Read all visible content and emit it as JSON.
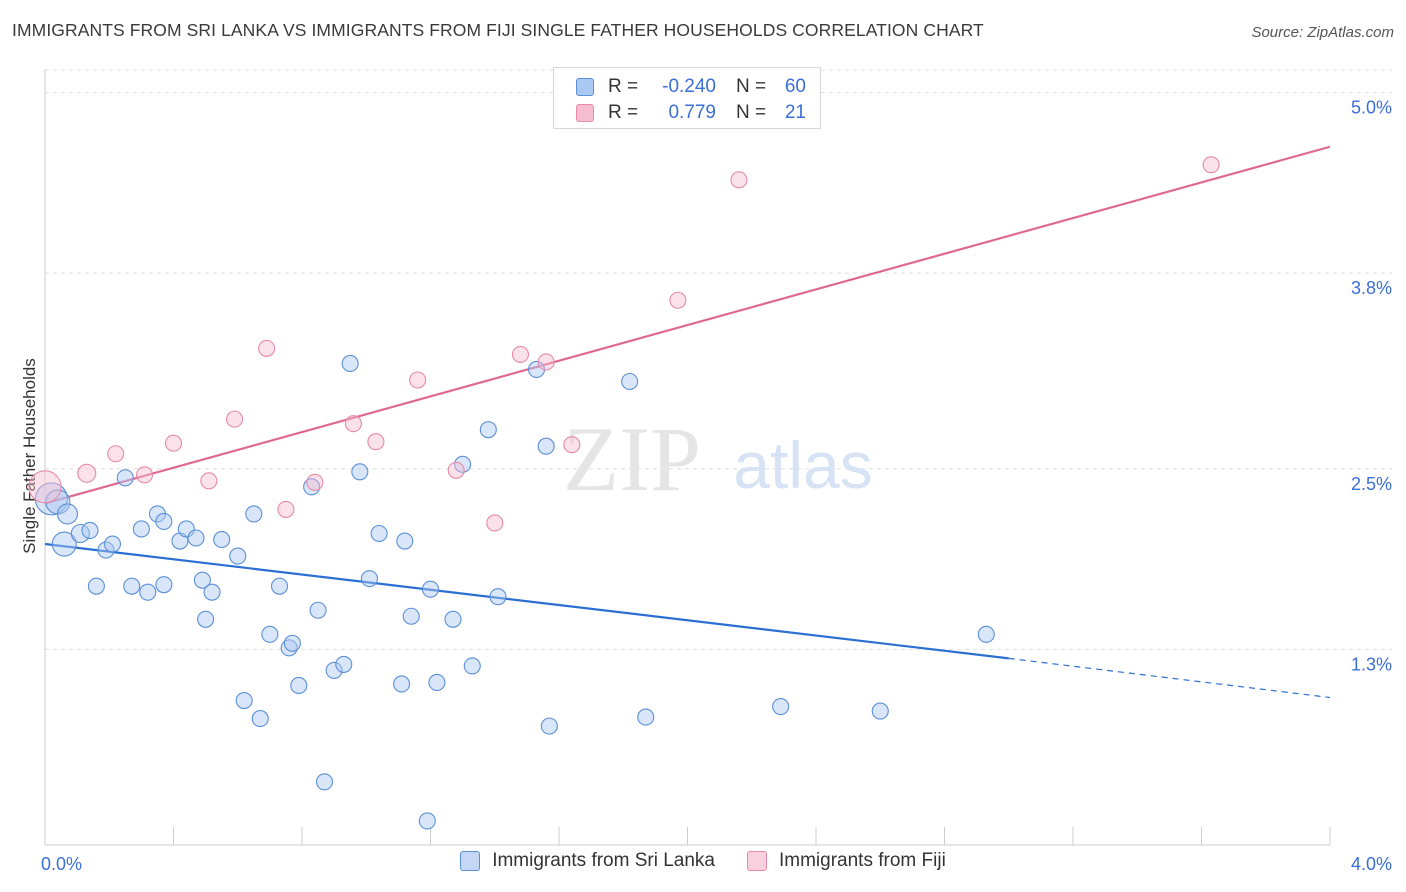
{
  "header": {
    "title": "IMMIGRANTS FROM SRI LANKA VS IMMIGRANTS FROM FIJI SINGLE FATHER HOUSEHOLDS CORRELATION CHART",
    "source": "Source: ZipAtlas.com"
  },
  "watermark": {
    "zip": "ZIP",
    "atlas": "atlas"
  },
  "legend_top": {
    "rows": [
      {
        "r_label": "R =",
        "r_value": "-0.240",
        "n_label": "N =",
        "n_value": "60"
      },
      {
        "r_label": "R =",
        "r_value": "0.779",
        "n_label": "N =",
        "n_value": "21"
      }
    ]
  },
  "legend_bottom": {
    "items": [
      {
        "label": "Immigrants from Sri Lanka"
      },
      {
        "label": "Immigrants from Fiji"
      }
    ]
  },
  "colors": {
    "sri_lanka_fill": "#aac8f2",
    "sri_lanka_stroke": "#5b8fd8",
    "sri_lanka_line": "#2b6fd1",
    "fiji_fill": "#f6bcd0",
    "fiji_stroke": "#e68aaa",
    "fiji_line": "#e06890",
    "tick_label": "#3b6fd6",
    "grid": "#dddddd"
  },
  "chart_data": {
    "type": "scatter",
    "title": "IMMIGRANTS FROM SRI LANKA VS IMMIGRANTS FROM FIJI SINGLE FATHER HOUSEHOLDS CORRELATION CHART",
    "xlabel": "",
    "ylabel": "Single Father Households",
    "xlim": [
      0.0,
      4.0
    ],
    "ylim": [
      0.0,
      5.15
    ],
    "x_tick_labels": [
      "0.0%",
      "4.0%"
    ],
    "y_ticks": [
      {
        "value": 1.3,
        "label": "1.3%"
      },
      {
        "value": 2.5,
        "label": "2.5%"
      },
      {
        "value": 3.8,
        "label": "3.8%"
      },
      {
        "value": 5.0,
        "label": "5.0%"
      }
    ],
    "grid": "horizontal dashed",
    "legend_position": "top-center and bottom",
    "series": [
      {
        "name": "Immigrants from Sri Lanka",
        "R": -0.24,
        "N": 60,
        "trend": {
          "x": [
            0.0,
            3.0
          ],
          "y": [
            2.0,
            1.24
          ],
          "dashed_extension": {
            "x": [
              3.0,
              4.0
            ],
            "y": [
              1.24,
              0.98
            ]
          }
        },
        "points": [
          {
            "x": 0.02,
            "y": 2.3,
            "s": 16
          },
          {
            "x": 0.04,
            "y": 2.28,
            "s": 12
          },
          {
            "x": 0.07,
            "y": 2.2,
            "s": 10
          },
          {
            "x": 0.06,
            "y": 2.0,
            "s": 12
          },
          {
            "x": 0.11,
            "y": 2.07,
            "s": 9
          },
          {
            "x": 0.14,
            "y": 2.09,
            "s": 8
          },
          {
            "x": 0.16,
            "y": 1.72,
            "s": 8
          },
          {
            "x": 0.19,
            "y": 1.96,
            "s": 8
          },
          {
            "x": 0.21,
            "y": 2.0,
            "s": 8
          },
          {
            "x": 0.25,
            "y": 2.44,
            "s": 8
          },
          {
            "x": 0.27,
            "y": 1.72,
            "s": 8
          },
          {
            "x": 0.3,
            "y": 2.1,
            "s": 8
          },
          {
            "x": 0.32,
            "y": 1.68,
            "s": 8
          },
          {
            "x": 0.35,
            "y": 2.2,
            "s": 8
          },
          {
            "x": 0.37,
            "y": 1.73,
            "s": 8
          },
          {
            "x": 0.37,
            "y": 2.15,
            "s": 8
          },
          {
            "x": 0.42,
            "y": 2.02,
            "s": 8
          },
          {
            "x": 0.44,
            "y": 2.1,
            "s": 8
          },
          {
            "x": 0.47,
            "y": 2.04,
            "s": 8
          },
          {
            "x": 0.49,
            "y": 1.76,
            "s": 8
          },
          {
            "x": 0.52,
            "y": 1.68,
            "s": 8
          },
          {
            "x": 0.5,
            "y": 1.5,
            "s": 8
          },
          {
            "x": 0.55,
            "y": 2.03,
            "s": 8
          },
          {
            "x": 0.6,
            "y": 1.92,
            "s": 8
          },
          {
            "x": 0.62,
            "y": 0.96,
            "s": 8
          },
          {
            "x": 0.65,
            "y": 2.2,
            "s": 8
          },
          {
            "x": 0.67,
            "y": 0.84,
            "s": 8
          },
          {
            "x": 0.7,
            "y": 1.4,
            "s": 8
          },
          {
            "x": 0.73,
            "y": 1.72,
            "s": 8
          },
          {
            "x": 0.76,
            "y": 1.31,
            "s": 8
          },
          {
            "x": 0.77,
            "y": 1.34,
            "s": 8
          },
          {
            "x": 0.79,
            "y": 1.06,
            "s": 8
          },
          {
            "x": 0.83,
            "y": 2.38,
            "s": 8
          },
          {
            "x": 0.85,
            "y": 1.56,
            "s": 8
          },
          {
            "x": 0.87,
            "y": 0.42,
            "s": 8
          },
          {
            "x": 0.9,
            "y": 1.16,
            "s": 8
          },
          {
            "x": 0.93,
            "y": 1.2,
            "s": 8
          },
          {
            "x": 0.95,
            "y": 3.2,
            "s": 8
          },
          {
            "x": 0.98,
            "y": 2.48,
            "s": 8
          },
          {
            "x": 1.01,
            "y": 1.77,
            "s": 8
          },
          {
            "x": 1.04,
            "y": 2.07,
            "s": 8
          },
          {
            "x": 1.11,
            "y": 1.07,
            "s": 8
          },
          {
            "x": 1.12,
            "y": 2.02,
            "s": 8
          },
          {
            "x": 1.14,
            "y": 1.52,
            "s": 8
          },
          {
            "x": 1.19,
            "y": 0.16,
            "s": 8
          },
          {
            "x": 1.2,
            "y": 1.7,
            "s": 8
          },
          {
            "x": 1.22,
            "y": 1.08,
            "s": 8
          },
          {
            "x": 1.27,
            "y": 1.5,
            "s": 8
          },
          {
            "x": 1.3,
            "y": 2.53,
            "s": 8
          },
          {
            "x": 1.33,
            "y": 1.19,
            "s": 8
          },
          {
            "x": 1.38,
            "y": 2.76,
            "s": 8
          },
          {
            "x": 1.41,
            "y": 1.65,
            "s": 8
          },
          {
            "x": 1.53,
            "y": 3.16,
            "s": 8
          },
          {
            "x": 1.56,
            "y": 2.65,
            "s": 8
          },
          {
            "x": 1.57,
            "y": 0.79,
            "s": 8
          },
          {
            "x": 1.82,
            "y": 3.08,
            "s": 8
          },
          {
            "x": 1.87,
            "y": 0.85,
            "s": 8
          },
          {
            "x": 2.29,
            "y": 0.92,
            "s": 8
          },
          {
            "x": 2.6,
            "y": 0.89,
            "s": 8
          },
          {
            "x": 2.93,
            "y": 1.4,
            "s": 8
          }
        ]
      },
      {
        "name": "Immigrants from Fiji",
        "R": 0.779,
        "N": 21,
        "trend": {
          "x": [
            0.0,
            4.0
          ],
          "y": [
            2.27,
            4.64
          ]
        },
        "points": [
          {
            "x": 0.0,
            "y": 2.38,
            "s": 16
          },
          {
            "x": 0.13,
            "y": 2.47,
            "s": 9
          },
          {
            "x": 0.22,
            "y": 2.6,
            "s": 8
          },
          {
            "x": 0.31,
            "y": 2.46,
            "s": 8
          },
          {
            "x": 0.4,
            "y": 2.67,
            "s": 8
          },
          {
            "x": 0.51,
            "y": 2.42,
            "s": 8
          },
          {
            "x": 0.59,
            "y": 2.83,
            "s": 8
          },
          {
            "x": 0.69,
            "y": 3.3,
            "s": 8
          },
          {
            "x": 0.75,
            "y": 2.23,
            "s": 8
          },
          {
            "x": 0.84,
            "y": 2.41,
            "s": 8
          },
          {
            "x": 0.96,
            "y": 2.8,
            "s": 8
          },
          {
            "x": 1.03,
            "y": 2.68,
            "s": 8
          },
          {
            "x": 1.16,
            "y": 3.09,
            "s": 8
          },
          {
            "x": 1.28,
            "y": 2.49,
            "s": 8
          },
          {
            "x": 1.4,
            "y": 2.14,
            "s": 8
          },
          {
            "x": 1.48,
            "y": 3.26,
            "s": 8
          },
          {
            "x": 1.56,
            "y": 3.21,
            "s": 8
          },
          {
            "x": 1.64,
            "y": 2.66,
            "s": 8
          },
          {
            "x": 1.97,
            "y": 3.62,
            "s": 8
          },
          {
            "x": 2.16,
            "y": 4.42,
            "s": 8
          },
          {
            "x": 3.63,
            "y": 4.52,
            "s": 8
          }
        ]
      }
    ]
  }
}
